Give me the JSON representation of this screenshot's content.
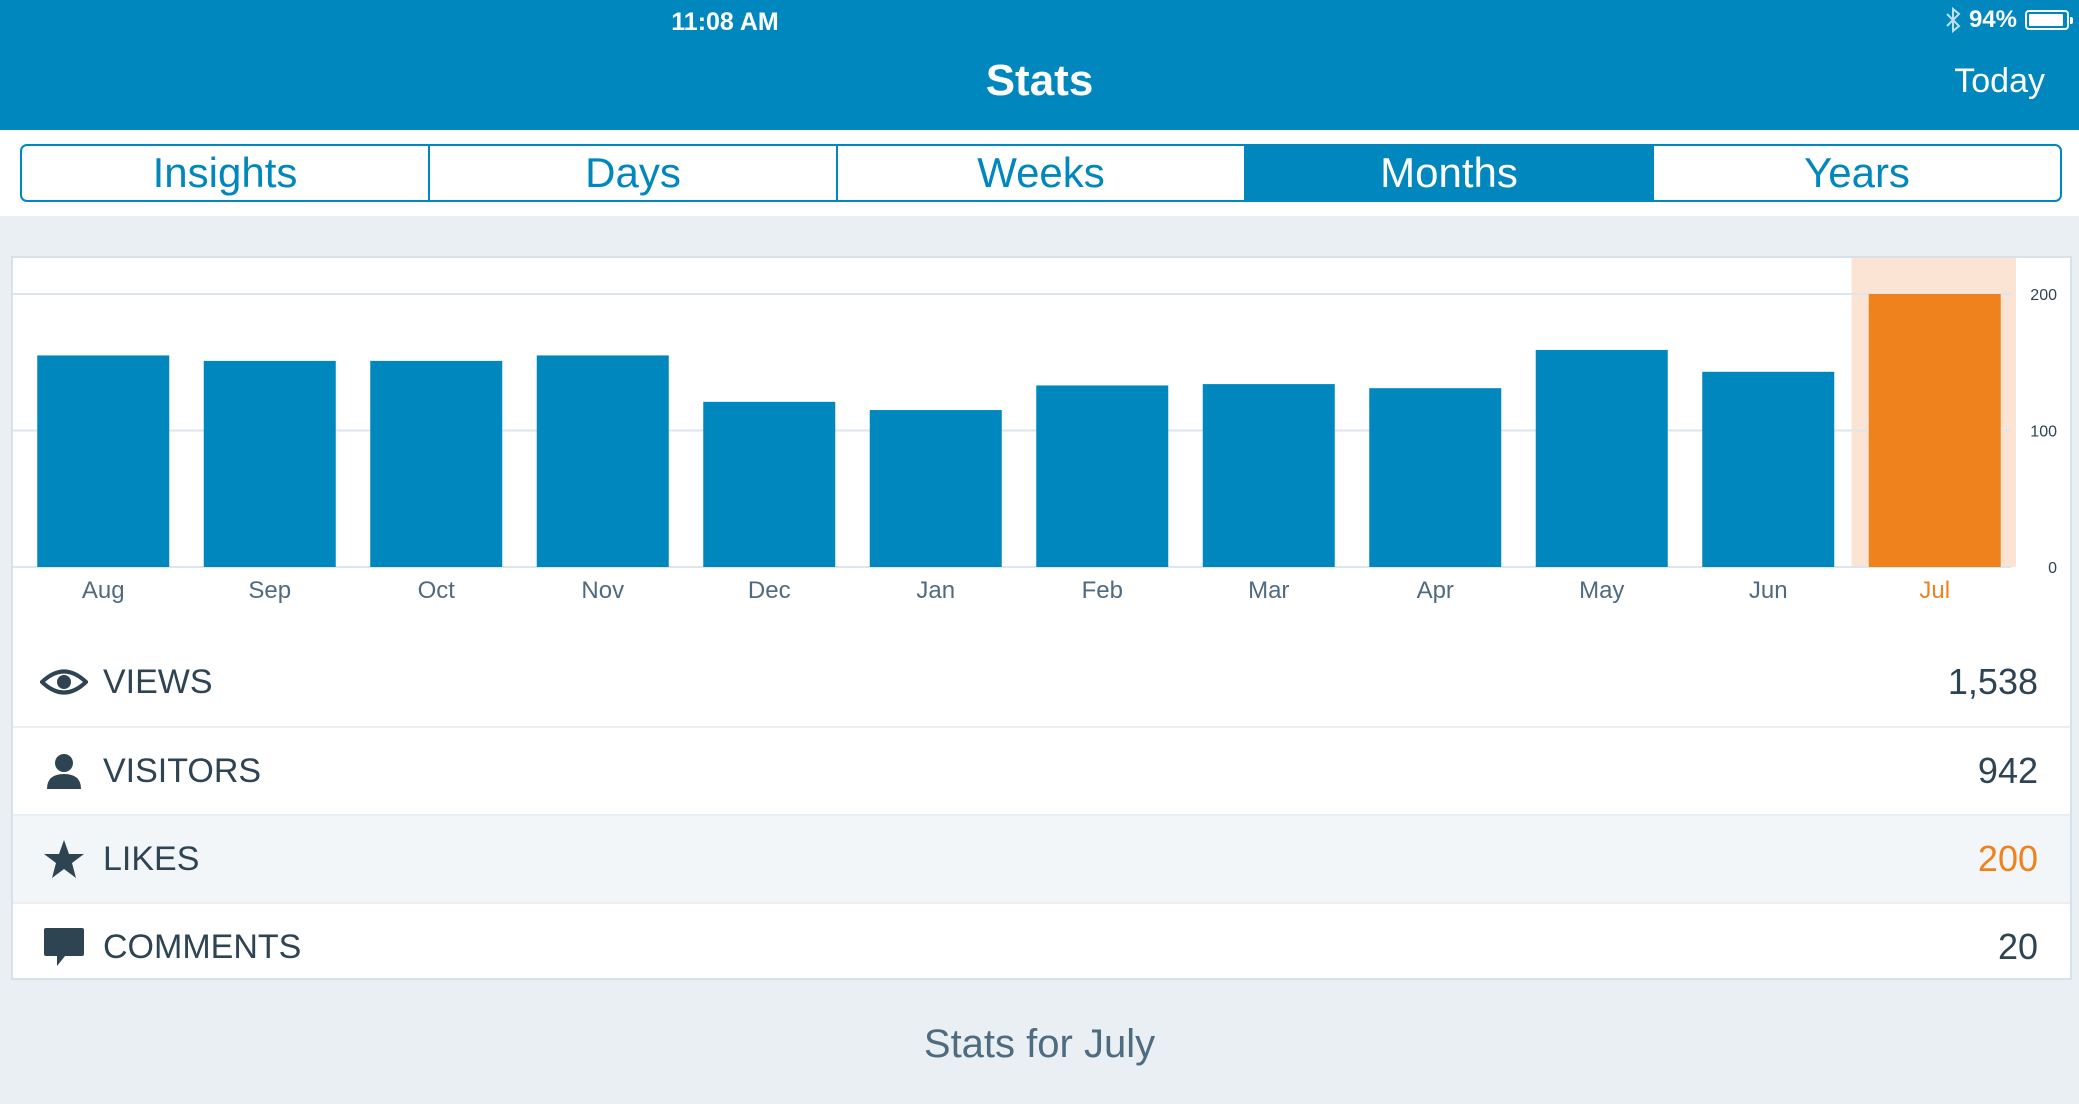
{
  "status_bar": {
    "time": "11:08 AM",
    "battery": "94%",
    "battery_level": 0.94
  },
  "nav": {
    "title": "Stats",
    "right_button": "Today"
  },
  "tabs": [
    {
      "label": "Insights",
      "active": false
    },
    {
      "label": "Days",
      "active": false
    },
    {
      "label": "Weeks",
      "active": false
    },
    {
      "label": "Months",
      "active": true
    },
    {
      "label": "Years",
      "active": false
    }
  ],
  "colors": {
    "primary": "#0087be",
    "accent": "#f0821e",
    "highlight": "#fce4d4",
    "text": "#2e4453",
    "background": "#e9eff3"
  },
  "chart_data": {
    "type": "bar",
    "categories": [
      "Aug",
      "Sep",
      "Oct",
      "Nov",
      "Dec",
      "Jan",
      "Feb",
      "Mar",
      "Apr",
      "May",
      "Jun",
      "Jul"
    ],
    "values": [
      155,
      151,
      151,
      155,
      121,
      115,
      133,
      134,
      131,
      159,
      143,
      200
    ],
    "selected_category": "Jul",
    "ylim": [
      0,
      200
    ],
    "yticks": [
      0,
      100,
      200
    ],
    "grid": true
  },
  "metrics": [
    {
      "key": "views",
      "icon": "eye-icon",
      "label": "VIEWS",
      "value": "1,538",
      "selected": false
    },
    {
      "key": "visitors",
      "icon": "person-icon",
      "label": "VISITORS",
      "value": "942",
      "selected": false
    },
    {
      "key": "likes",
      "icon": "star-icon",
      "label": "LIKES",
      "value": "200",
      "selected": true
    },
    {
      "key": "comments",
      "icon": "comment-icon",
      "label": "COMMENTS",
      "value": "20",
      "selected": false
    }
  ],
  "footer": {
    "title": "Stats for July"
  }
}
